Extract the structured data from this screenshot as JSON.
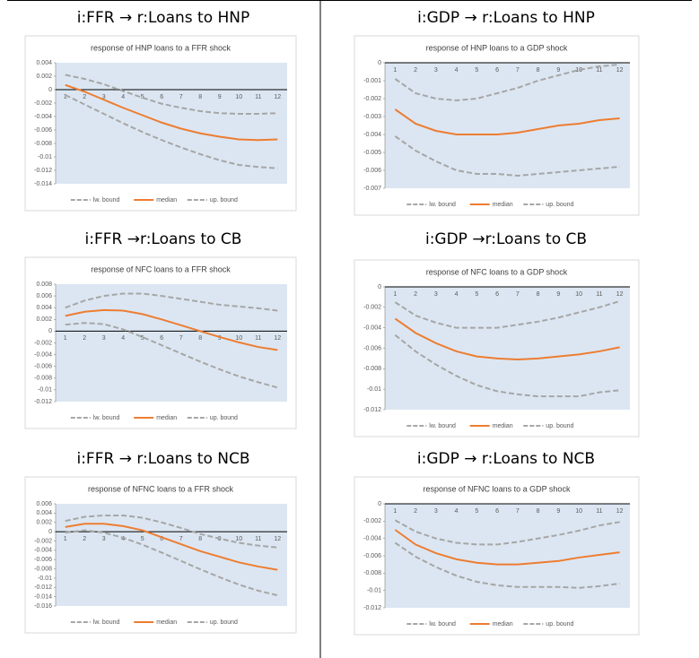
{
  "chart_data": [
    {
      "type": "line",
      "heading": "i:FFR → r:Loans to HNP",
      "title": "response of HNP loans to a FFR shock",
      "categories": [
        "1",
        "2",
        "3",
        "4",
        "5",
        "6",
        "7",
        "8",
        "9",
        "10",
        "11",
        "12"
      ],
      "ylim": [
        -0.014,
        0.004
      ],
      "yticks": [
        0.004,
        0.002,
        0,
        -0.002,
        -0.004,
        -0.006,
        -0.008,
        -0.01,
        -0.012,
        -0.014
      ],
      "series": [
        {
          "name": "lw. bound",
          "color": "#a6a6a6",
          "dashed": true,
          "values": [
            -0.0008,
            -0.0022,
            -0.0036,
            -0.005,
            -0.0063,
            -0.0075,
            -0.0086,
            -0.0096,
            -0.0105,
            -0.0112,
            -0.0115,
            -0.0117
          ]
        },
        {
          "name": "median",
          "color": "#ed7d31",
          "dashed": false,
          "values": [
            0.0007,
            -0.0003,
            -0.0015,
            -0.0027,
            -0.0038,
            -0.0049,
            -0.0058,
            -0.0065,
            -0.007,
            -0.0074,
            -0.0075,
            -0.0074
          ]
        },
        {
          "name": "up. bound",
          "color": "#a6a6a6",
          "dashed": true,
          "values": [
            0.0022,
            0.0016,
            0.0008,
            -0.0002,
            -0.0012,
            -0.0021,
            -0.0027,
            -0.0032,
            -0.0035,
            -0.0036,
            -0.0036,
            -0.0035
          ]
        }
      ]
    },
    {
      "type": "line",
      "heading": "i:GDP → r:Loans to HNP",
      "title": "response of HNP loans to a GDP shock",
      "categories": [
        "1",
        "2",
        "3",
        "4",
        "5",
        "6",
        "7",
        "8",
        "9",
        "10",
        "11",
        "12"
      ],
      "ylim": [
        -0.007,
        0
      ],
      "yticks": [
        0,
        -0.001,
        -0.002,
        -0.003,
        -0.004,
        -0.005,
        -0.006,
        -0.007
      ],
      "series": [
        {
          "name": "lw. bound",
          "color": "#a6a6a6",
          "dashed": true,
          "values": [
            -0.0041,
            -0.0049,
            -0.0055,
            -0.006,
            -0.0062,
            -0.0062,
            -0.0063,
            -0.0062,
            -0.0061,
            -0.006,
            -0.0059,
            -0.0058
          ]
        },
        {
          "name": "median",
          "color": "#ed7d31",
          "dashed": false,
          "values": [
            -0.0026,
            -0.0034,
            -0.0038,
            -0.004,
            -0.004,
            -0.004,
            -0.0039,
            -0.0037,
            -0.0035,
            -0.0034,
            -0.0032,
            -0.0031
          ]
        },
        {
          "name": "up. bound",
          "color": "#a6a6a6",
          "dashed": true,
          "values": [
            -0.0009,
            -0.0017,
            -0.002,
            -0.0021,
            -0.002,
            -0.0017,
            -0.0014,
            -0.001,
            -0.0007,
            -0.0004,
            -0.0002,
            -0.0001
          ]
        }
      ]
    },
    {
      "type": "line",
      "heading": "i:FFR →r:Loans to CB",
      "title": "response of NFC loans to a FFR shock",
      "categories": [
        "1",
        "2",
        "3",
        "4",
        "5",
        "6",
        "7",
        "8",
        "9",
        "10",
        "11",
        "12"
      ],
      "ylim": [
        -0.012,
        0.008
      ],
      "yticks": [
        0.008,
        0.006,
        0.004,
        0.002,
        0,
        -0.002,
        -0.004,
        -0.006,
        -0.008,
        -0.01,
        -0.012
      ],
      "series": [
        {
          "name": "lw. bound",
          "color": "#a6a6a6",
          "dashed": true,
          "values": [
            0.0011,
            0.0014,
            0.0012,
            0.0003,
            -0.001,
            -0.0024,
            -0.0038,
            -0.0052,
            -0.0065,
            -0.0077,
            -0.0087,
            -0.0096
          ]
        },
        {
          "name": "median",
          "color": "#ed7d31",
          "dashed": false,
          "values": [
            0.0026,
            0.0033,
            0.0036,
            0.0035,
            0.0029,
            0.002,
            0.001,
            0,
            -0.001,
            -0.0019,
            -0.0027,
            -0.0032
          ]
        },
        {
          "name": "up. bound",
          "color": "#a6a6a6",
          "dashed": true,
          "values": [
            0.004,
            0.0052,
            0.006,
            0.0064,
            0.0064,
            0.006,
            0.0055,
            0.005,
            0.0045,
            0.0042,
            0.0039,
            0.0035
          ]
        }
      ]
    },
    {
      "type": "line",
      "heading": "i:GDP →r:Loans to CB",
      "title": "response of NFC loans to a GDP shock",
      "categories": [
        "1",
        "2",
        "3",
        "4",
        "5",
        "6",
        "7",
        "8",
        "9",
        "10",
        "11",
        "12"
      ],
      "ylim": [
        -0.012,
        0
      ],
      "yticks": [
        0,
        -0.002,
        -0.004,
        -0.006,
        -0.008,
        -0.01,
        -0.012
      ],
      "series": [
        {
          "name": "lw. bound",
          "color": "#a6a6a6",
          "dashed": true,
          "values": [
            -0.0047,
            -0.0063,
            -0.0076,
            -0.0087,
            -0.0096,
            -0.0102,
            -0.0105,
            -0.0107,
            -0.0107,
            -0.0107,
            -0.0103,
            -0.0101
          ]
        },
        {
          "name": "median",
          "color": "#ed7d31",
          "dashed": false,
          "values": [
            -0.0031,
            -0.0045,
            -0.0055,
            -0.0063,
            -0.0068,
            -0.007,
            -0.0071,
            -0.007,
            -0.0068,
            -0.0066,
            -0.0063,
            -0.0059
          ]
        },
        {
          "name": "up. bound",
          "color": "#a6a6a6",
          "dashed": true,
          "values": [
            -0.0015,
            -0.0028,
            -0.0035,
            -0.004,
            -0.004,
            -0.004,
            -0.0037,
            -0.0034,
            -0.003,
            -0.0025,
            -0.002,
            -0.0014
          ]
        }
      ]
    },
    {
      "type": "line",
      "heading": "i:FFR → r:Loans to NCB",
      "title": "response of NFNC loans to a FFR shock",
      "categories": [
        "1",
        "2",
        "3",
        "4",
        "5",
        "6",
        "7",
        "8",
        "9",
        "10",
        "11",
        "12"
      ],
      "ylim": [
        -0.016,
        0.006
      ],
      "yticks": [
        0.006,
        0.004,
        0.002,
        0,
        -0.002,
        -0.004,
        -0.006,
        -0.008,
        -0.01,
        -0.012,
        -0.014,
        -0.016
      ],
      "series": [
        {
          "name": "lw. bound",
          "color": "#a6a6a6",
          "dashed": true,
          "values": [
            -0.0002,
            0.0003,
            -0.0002,
            -0.0013,
            -0.0028,
            -0.0045,
            -0.0063,
            -0.0081,
            -0.0098,
            -0.0114,
            -0.0127,
            -0.0137
          ]
        },
        {
          "name": "median",
          "color": "#ed7d31",
          "dashed": false,
          "values": [
            0.001,
            0.0017,
            0.0017,
            0.0012,
            0.0003,
            -0.0012,
            -0.0027,
            -0.0042,
            -0.0054,
            -0.0066,
            -0.0075,
            -0.0082
          ]
        },
        {
          "name": "up. bound",
          "color": "#a6a6a6",
          "dashed": true,
          "values": [
            0.0023,
            0.0032,
            0.0035,
            0.0035,
            0.003,
            0.002,
            0.0008,
            -0.0005,
            -0.0015,
            -0.0024,
            -0.003,
            -0.0034
          ]
        }
      ]
    },
    {
      "type": "line",
      "heading": "i:GDP → r:Loans to NCB",
      "title": "response of NFNC loans to a GDP shock",
      "categories": [
        "1",
        "2",
        "3",
        "4",
        "5",
        "6",
        "7",
        "8",
        "9",
        "10",
        "11",
        "12"
      ],
      "ylim": [
        -0.012,
        0
      ],
      "yticks": [
        0,
        -0.002,
        -0.004,
        -0.006,
        -0.008,
        -0.01,
        -0.012
      ],
      "series": [
        {
          "name": "lw. bound",
          "color": "#a6a6a6",
          "dashed": true,
          "values": [
            -0.0045,
            -0.0061,
            -0.0073,
            -0.0083,
            -0.009,
            -0.0094,
            -0.0096,
            -0.0096,
            -0.0096,
            -0.0097,
            -0.0095,
            -0.0092
          ]
        },
        {
          "name": "median",
          "color": "#ed7d31",
          "dashed": false,
          "values": [
            -0.003,
            -0.0047,
            -0.0057,
            -0.0064,
            -0.0068,
            -0.007,
            -0.007,
            -0.0068,
            -0.0066,
            -0.0062,
            -0.0059,
            -0.0056
          ]
        },
        {
          "name": "up. bound",
          "color": "#a6a6a6",
          "dashed": true,
          "values": [
            -0.0019,
            -0.0032,
            -0.004,
            -0.0045,
            -0.0047,
            -0.0047,
            -0.0044,
            -0.004,
            -0.0036,
            -0.0031,
            -0.0025,
            -0.0021
          ]
        }
      ]
    }
  ]
}
